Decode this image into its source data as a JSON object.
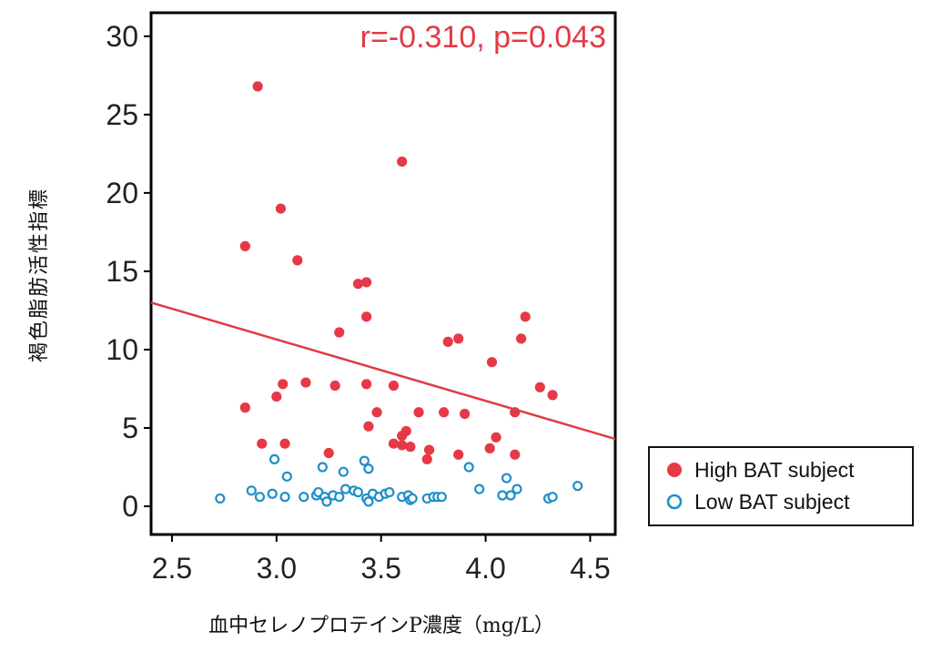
{
  "chart_data": {
    "type": "scatter",
    "xlabel": "血中セレノプロテインP濃度（mg/L）",
    "ylabel": "褐色脂肪活性指標",
    "xlim": [
      2.4,
      4.62
    ],
    "ylim": [
      -1.8,
      31.5
    ],
    "x_ticks": [
      2.5,
      3.0,
      3.5,
      4.0,
      4.5
    ],
    "x_tick_labels": [
      "2.5",
      "3.0",
      "3.5",
      "4.0",
      "4.5"
    ],
    "y_ticks": [
      0,
      5,
      10,
      15,
      20,
      25,
      30
    ],
    "y_tick_labels": [
      "0",
      "5",
      "10",
      "15",
      "20",
      "25",
      "30"
    ],
    "grid": false,
    "annotation": "r=-0.310, p=0.043",
    "legend_position": "right",
    "colors": {
      "high": "#e63946",
      "low": "#1f8fc9",
      "line": "#e03c45"
    },
    "regression_line": {
      "x": [
        2.4,
        4.62
      ],
      "y": [
        13.0,
        4.3
      ]
    },
    "series": [
      {
        "name": "High BAT subject",
        "marker": "filled-circle",
        "points": [
          [
            2.91,
            26.8
          ],
          [
            2.85,
            16.6
          ],
          [
            3.02,
            19.0
          ],
          [
            3.1,
            15.7
          ],
          [
            2.85,
            6.3
          ],
          [
            2.93,
            4.0
          ],
          [
            3.0,
            7.0
          ],
          [
            3.03,
            7.8
          ],
          [
            3.04,
            4.0
          ],
          [
            3.14,
            7.9
          ],
          [
            3.25,
            3.4
          ],
          [
            3.28,
            7.7
          ],
          [
            3.3,
            11.1
          ],
          [
            3.39,
            14.2
          ],
          [
            3.43,
            14.3
          ],
          [
            3.43,
            12.1
          ],
          [
            3.43,
            7.8
          ],
          [
            3.44,
            5.1
          ],
          [
            3.48,
            6.0
          ],
          [
            3.56,
            7.7
          ],
          [
            3.56,
            4.0
          ],
          [
            3.6,
            3.9
          ],
          [
            3.6,
            22.0
          ],
          [
            3.62,
            4.8
          ],
          [
            3.6,
            4.5
          ],
          [
            3.64,
            3.8
          ],
          [
            3.68,
            6.0
          ],
          [
            3.72,
            3.0
          ],
          [
            3.73,
            3.6
          ],
          [
            3.8,
            6.0
          ],
          [
            3.82,
            10.5
          ],
          [
            3.87,
            10.7
          ],
          [
            3.87,
            3.3
          ],
          [
            3.9,
            5.9
          ],
          [
            4.02,
            3.7
          ],
          [
            4.03,
            9.2
          ],
          [
            4.05,
            4.4
          ],
          [
            4.14,
            3.3
          ],
          [
            4.14,
            6.0
          ],
          [
            4.17,
            10.7
          ],
          [
            4.19,
            12.1
          ],
          [
            4.26,
            7.6
          ],
          [
            4.32,
            7.1
          ]
        ]
      },
      {
        "name": "Low BAT subject",
        "marker": "open-circle",
        "points": [
          [
            2.73,
            0.5
          ],
          [
            2.88,
            1.0
          ],
          [
            2.92,
            0.6
          ],
          [
            2.98,
            0.8
          ],
          [
            2.99,
            3.0
          ],
          [
            3.04,
            0.6
          ],
          [
            3.05,
            1.9
          ],
          [
            3.13,
            0.6
          ],
          [
            3.19,
            0.7
          ],
          [
            3.2,
            0.9
          ],
          [
            3.22,
            2.5
          ],
          [
            3.23,
            0.6
          ],
          [
            3.24,
            0.3
          ],
          [
            3.27,
            0.7
          ],
          [
            3.3,
            0.6
          ],
          [
            3.32,
            2.2
          ],
          [
            3.33,
            1.1
          ],
          [
            3.37,
            1.0
          ],
          [
            3.39,
            0.9
          ],
          [
            3.42,
            2.9
          ],
          [
            3.43,
            0.5
          ],
          [
            3.44,
            2.4
          ],
          [
            3.44,
            0.3
          ],
          [
            3.46,
            0.8
          ],
          [
            3.49,
            0.6
          ],
          [
            3.52,
            0.8
          ],
          [
            3.54,
            0.9
          ],
          [
            3.6,
            0.6
          ],
          [
            3.63,
            0.7
          ],
          [
            3.64,
            0.4
          ],
          [
            3.65,
            0.5
          ],
          [
            3.72,
            0.5
          ],
          [
            3.75,
            0.6
          ],
          [
            3.77,
            0.6
          ],
          [
            3.79,
            0.6
          ],
          [
            3.92,
            2.5
          ],
          [
            3.97,
            1.1
          ],
          [
            4.08,
            0.7
          ],
          [
            4.1,
            1.8
          ],
          [
            4.12,
            0.7
          ],
          [
            4.15,
            1.1
          ],
          [
            4.3,
            0.5
          ],
          [
            4.32,
            0.6
          ],
          [
            4.44,
            1.3
          ]
        ]
      }
    ]
  }
}
